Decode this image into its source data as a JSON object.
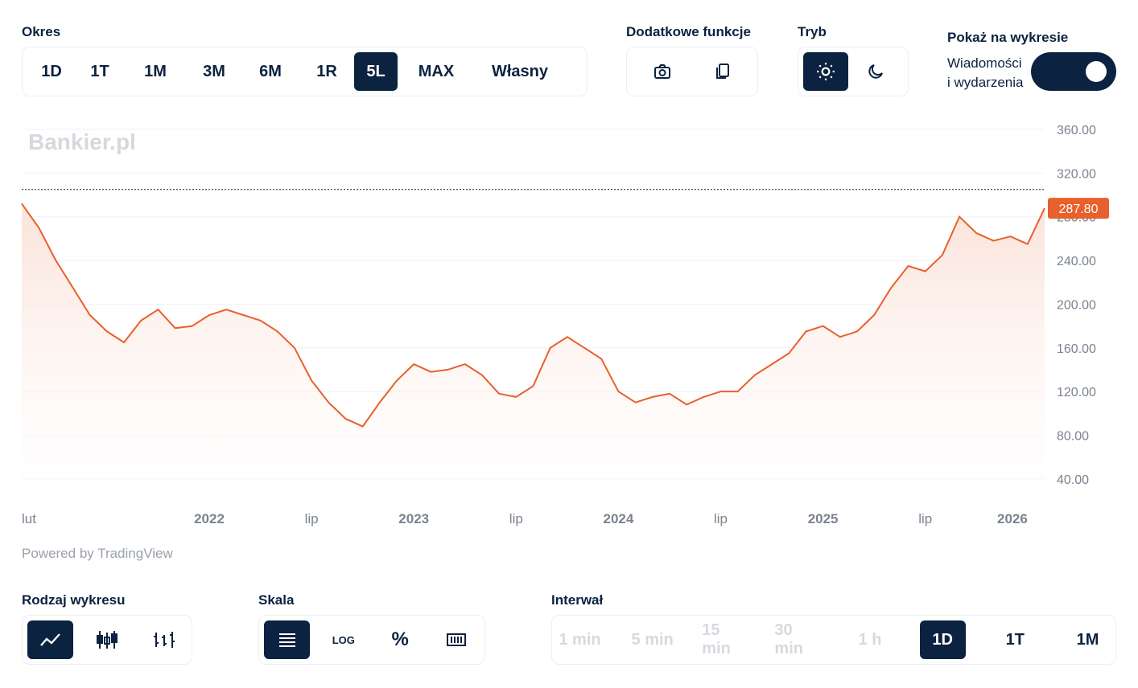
{
  "controls": {
    "period": {
      "title": "Okres",
      "options": [
        "1D",
        "1T",
        "1M",
        "3M",
        "6M",
        "1R",
        "5L",
        "MAX",
        "Własny"
      ],
      "selected": 6
    },
    "extras": {
      "title": "Dodatkowe funkcje"
    },
    "mode": {
      "title": "Tryb"
    },
    "show": {
      "title": "Pokaż na wykresie",
      "toggle_label_line1": "Wiadomości",
      "toggle_label_line2": "i wydarzenia",
      "on": true
    },
    "chart_type": {
      "title": "Rodzaj wykresu"
    },
    "scale": {
      "title": "Skala",
      "log_label": "LOG",
      "percent_label": "%"
    },
    "interval": {
      "title": "Interwał",
      "options": [
        "1 min",
        "5 min",
        "15 min",
        "30 min",
        "1 h",
        "1D",
        "1T",
        "1M"
      ],
      "disabled": [
        0,
        1,
        2,
        3,
        4
      ],
      "selected": 5
    }
  },
  "chart_data": {
    "type": "line",
    "watermark": "Bankier.pl",
    "footer": "Powered by TradingView",
    "color": "#e8602c",
    "reference_line": 305,
    "last_label": "287.80",
    "x": [
      "2021-02",
      "2021-03",
      "2021-04",
      "2021-05",
      "2021-06",
      "2021-07",
      "2021-08",
      "2021-09",
      "2021-10",
      "2021-11",
      "2021-12",
      "2022-01",
      "2022-02",
      "2022-03",
      "2022-04",
      "2022-05",
      "2022-06",
      "2022-07",
      "2022-08",
      "2022-09",
      "2022-10",
      "2022-11",
      "2022-12",
      "2023-01",
      "2023-02",
      "2023-03",
      "2023-04",
      "2023-05",
      "2023-06",
      "2023-07",
      "2023-08",
      "2023-09",
      "2023-10",
      "2023-11",
      "2023-12",
      "2024-01",
      "2024-02",
      "2024-03",
      "2024-04",
      "2024-05",
      "2024-06",
      "2024-07",
      "2024-08",
      "2024-09",
      "2024-10",
      "2024-11",
      "2024-12",
      "2025-01",
      "2025-02",
      "2025-03",
      "2025-04",
      "2025-05",
      "2025-06",
      "2025-07",
      "2025-08",
      "2025-09",
      "2025-10",
      "2025-11",
      "2025-12",
      "2026-01",
      "2026-02"
    ],
    "values": [
      292,
      270,
      240,
      215,
      190,
      175,
      165,
      185,
      195,
      178,
      180,
      190,
      195,
      190,
      185,
      175,
      160,
      130,
      110,
      95,
      88,
      110,
      130,
      145,
      138,
      140,
      145,
      135,
      118,
      115,
      125,
      160,
      170,
      160,
      150,
      120,
      110,
      115,
      118,
      108,
      115,
      120,
      120,
      135,
      145,
      155,
      175,
      180,
      170,
      175,
      190,
      215,
      235,
      230,
      245,
      280,
      265,
      258,
      262,
      255,
      287.8
    ],
    "xlim": [
      "2021-02",
      "2026-02"
    ],
    "xticks": [
      {
        "value": "2021-02",
        "label": "lut"
      },
      {
        "value": "2022-01",
        "label": "2022"
      },
      {
        "value": "2022-07",
        "label": "lip"
      },
      {
        "value": "2023-01",
        "label": "2023"
      },
      {
        "value": "2023-07",
        "label": "lip"
      },
      {
        "value": "2024-01",
        "label": "2024"
      },
      {
        "value": "2024-07",
        "label": "lip"
      },
      {
        "value": "2025-01",
        "label": "2025"
      },
      {
        "value": "2025-07",
        "label": "lip"
      },
      {
        "value": "2026-01",
        "label": "2026"
      }
    ],
    "ylim": [
      20,
      360
    ],
    "yticks": [
      {
        "value": 40,
        "label": "40.00"
      },
      {
        "value": 80,
        "label": "80.00"
      },
      {
        "value": 120,
        "label": "120.00"
      },
      {
        "value": 160,
        "label": "160.00"
      },
      {
        "value": 200,
        "label": "200.00"
      },
      {
        "value": 240,
        "label": "240.00"
      },
      {
        "value": 280,
        "label": "280.00"
      },
      {
        "value": 320,
        "label": "320.00"
      },
      {
        "value": 360,
        "label": "360.00"
      }
    ],
    "grid": true
  }
}
